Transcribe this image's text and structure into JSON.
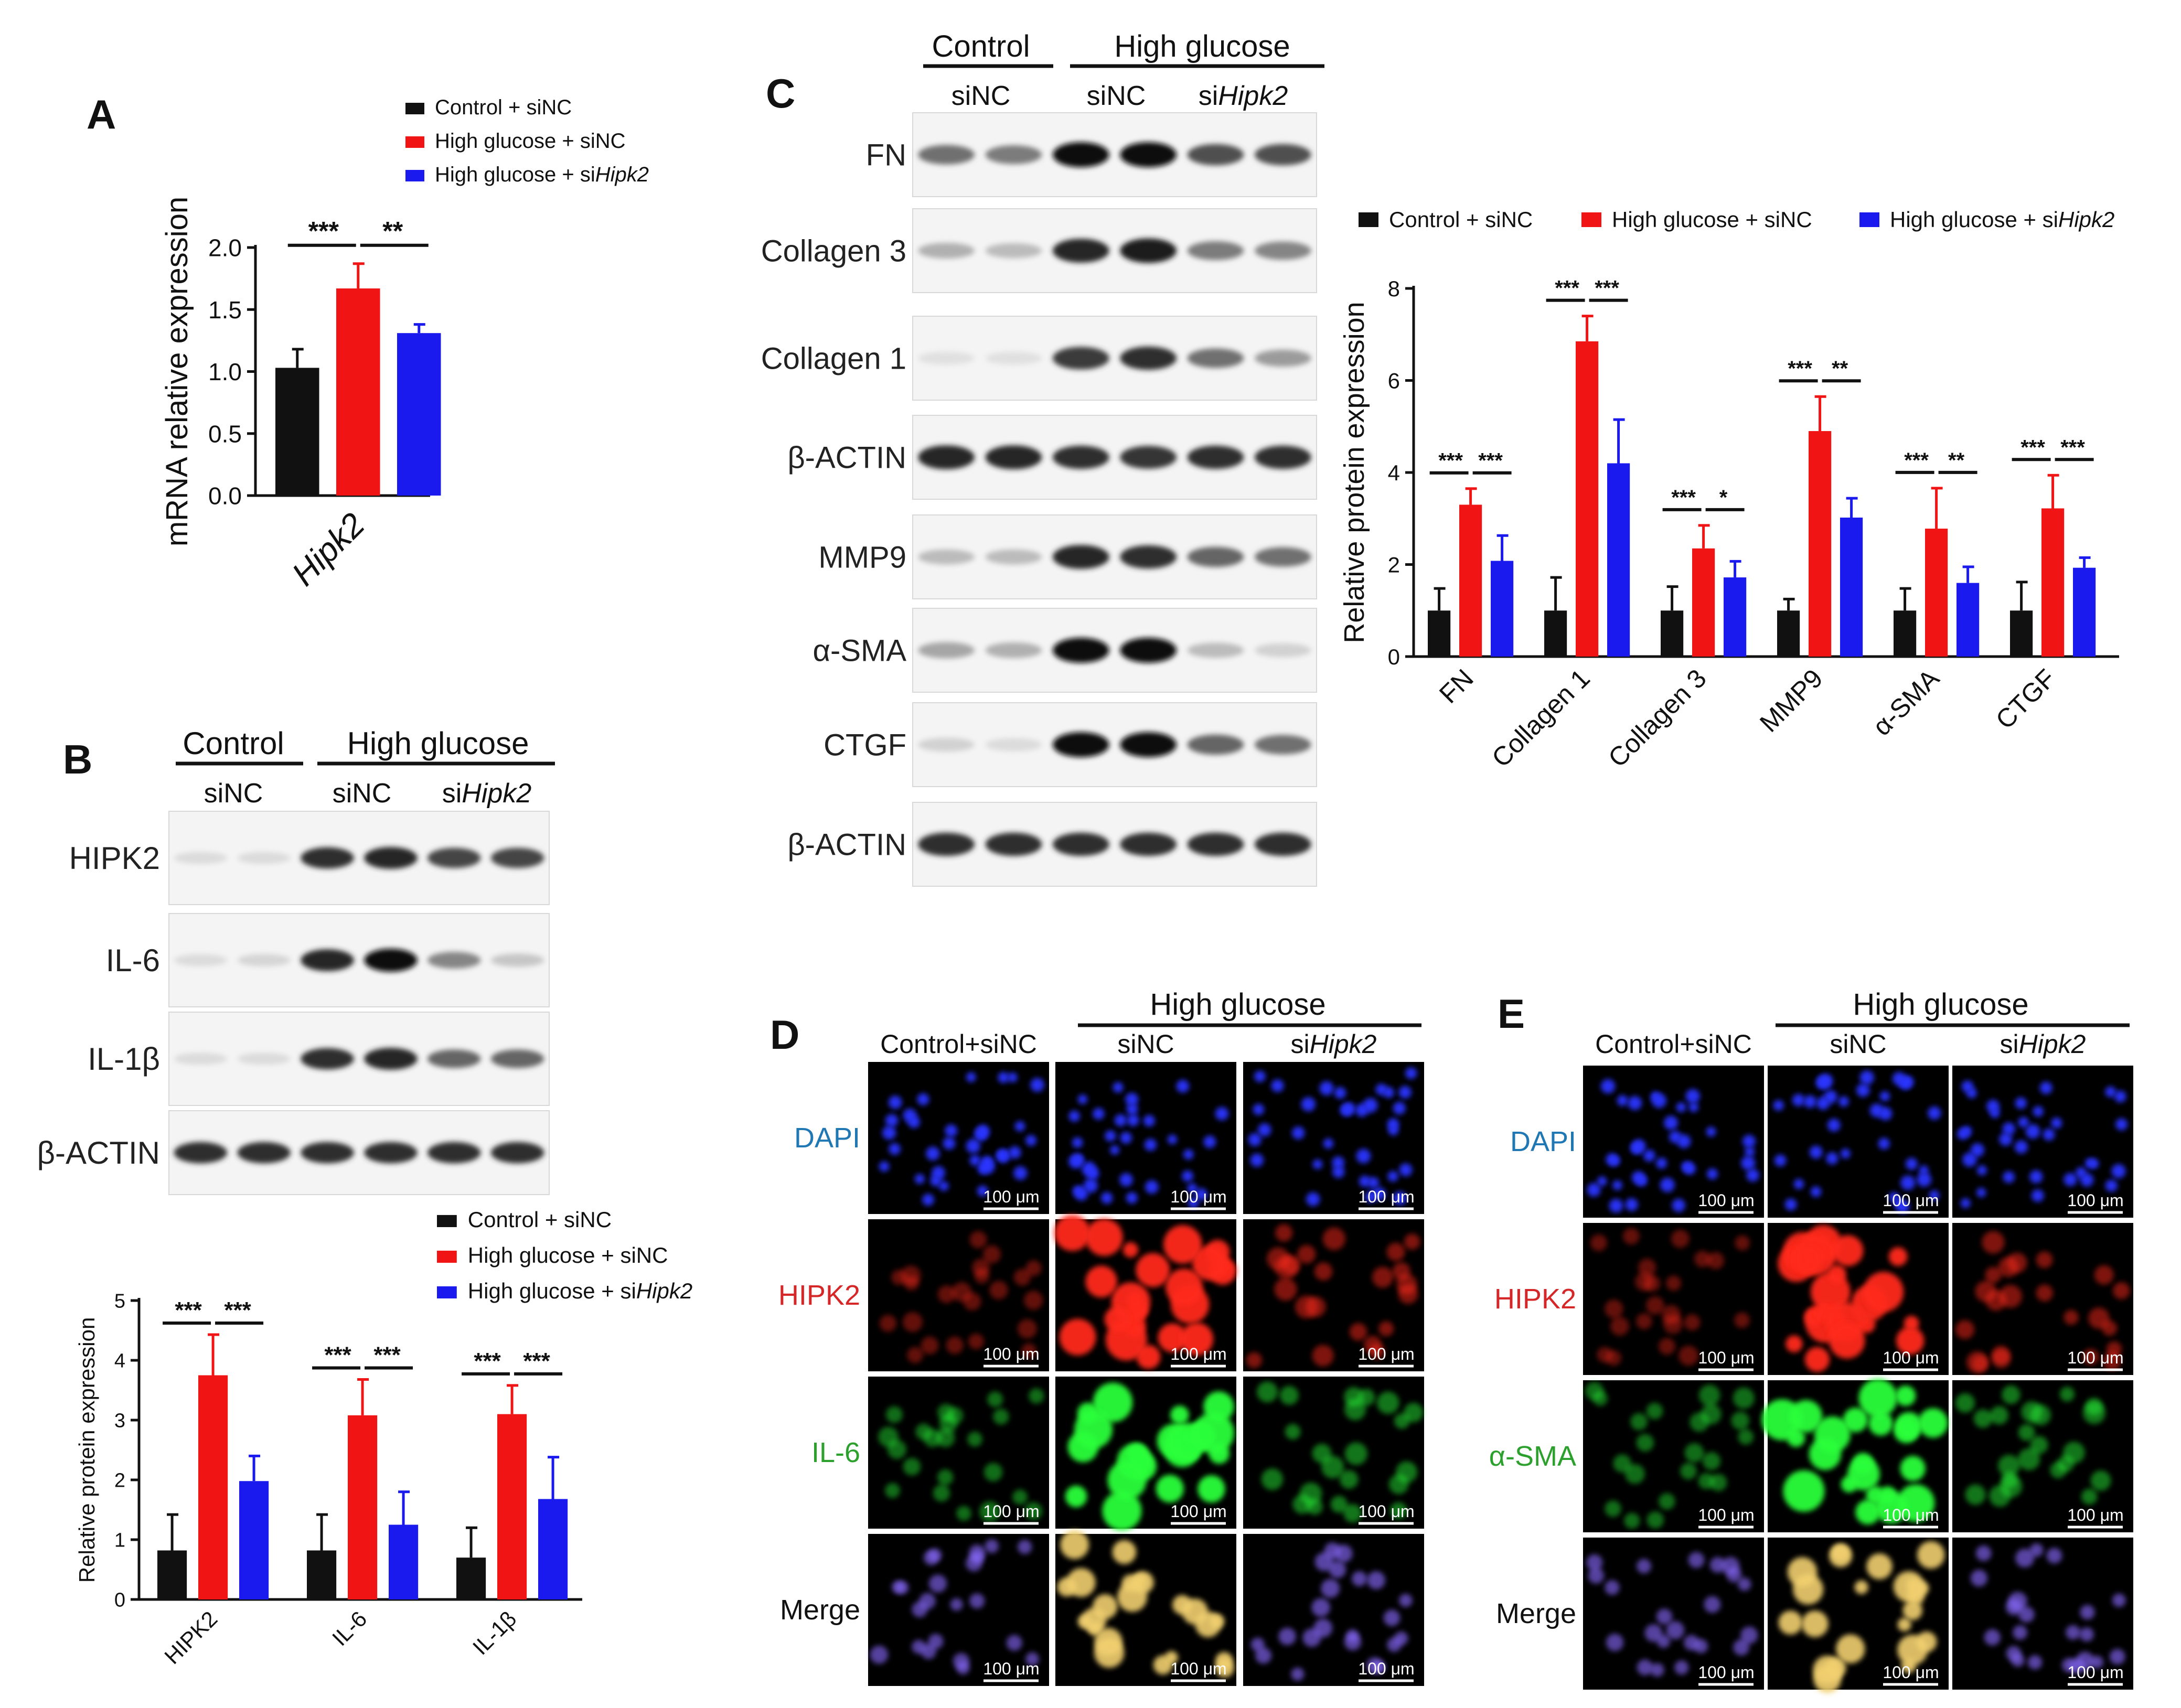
{
  "figure": {
    "panels": {
      "A": "A",
      "B": "B",
      "C": "C",
      "D": "D",
      "E": "E"
    }
  },
  "colors": {
    "control": "#111111",
    "high_glucose_sinc": "#f01414",
    "high_glucose_sihipk2": "#1a1aee"
  },
  "legend": [
    {
      "label": "Control + siNC",
      "color": "#111111"
    },
    {
      "label": "High glucose + siNC",
      "color": "#f01414"
    },
    {
      "label": "High glucose + siHipk2",
      "color": "#1a1aee"
    }
  ],
  "legend_parts": {
    "control": "Control + siNC",
    "hg_sinc": "High glucose + siNC",
    "hg_si_prefix": "High glucose + si",
    "hg_si_gene": "Hipk2"
  },
  "blots": {
    "group_control": "Control",
    "group_high_glucose": "High glucose",
    "sinc": "siNC",
    "si_prefix": "si",
    "si_gene": "Hipk2",
    "panel_b_rows": [
      "HIPK2",
      "IL-6",
      "IL-1β",
      "β-ACTIN"
    ],
    "panel_c_rows": [
      "FN",
      "Collagen 3",
      "Collagen 1",
      "β-ACTIN",
      "MMP9",
      "α-SMA",
      "CTGF",
      "β-ACTIN"
    ]
  },
  "immunofluorescence": {
    "high_glucose": "High glucose",
    "columns": {
      "control": "Control+siNC",
      "sinc": "siNC",
      "si_prefix": "si",
      "si_gene": "Hipk2"
    },
    "scale_bar": "100 μm",
    "panel_d_rows": [
      "DAPI",
      "HIPK2",
      "IL-6",
      "Merge"
    ],
    "panel_e_rows": [
      "DAPI",
      "HIPK2",
      "α-SMA",
      "Merge"
    ]
  },
  "chart_data": [
    {
      "panel": "A",
      "type": "bar",
      "categories": [
        "Hipk2"
      ],
      "series": [
        {
          "name": "Control + siNC",
          "values": [
            1.03
          ],
          "errors": [
            0.15
          ]
        },
        {
          "name": "High glucose + siNC",
          "values": [
            1.67
          ],
          "errors": [
            0.2
          ]
        },
        {
          "name": "High glucose + siHipk2",
          "values": [
            1.31
          ],
          "errors": [
            0.07
          ]
        }
      ],
      "ylabel": "mRNA relative expression",
      "ylim": [
        0,
        2.0
      ],
      "yticks": [
        "0.0",
        "0.5",
        "1.0",
        "1.5",
        "2.0"
      ],
      "significance": [
        "***",
        "**"
      ],
      "legend": "top-right",
      "grid": false
    },
    {
      "panel": "B",
      "type": "bar",
      "categories": [
        "HIPK2",
        "IL-6",
        "IL-1β"
      ],
      "series": [
        {
          "name": "Control + siNC",
          "values": [
            0.82,
            0.82,
            0.7
          ],
          "errors": [
            0.6,
            0.6,
            0.5
          ]
        },
        {
          "name": "High glucose + siNC",
          "values": [
            3.75,
            3.08,
            3.1
          ],
          "errors": [
            0.68,
            0.6,
            0.48
          ]
        },
        {
          "name": "High glucose + siHipk2",
          "values": [
            1.98,
            1.25,
            1.68
          ],
          "errors": [
            0.42,
            0.55,
            0.7
          ]
        }
      ],
      "ylabel": "Relative protein expression",
      "ylim": [
        0,
        5
      ],
      "yticks": [
        "0",
        "1",
        "2",
        "3",
        "4",
        "5"
      ],
      "significance": [
        [
          "***",
          "***"
        ],
        [
          "***",
          "***"
        ],
        [
          "***",
          "***"
        ]
      ],
      "legend": "top-right",
      "grid": false
    },
    {
      "panel": "C",
      "type": "bar",
      "categories": [
        "FN",
        "Collagen 1",
        "Collagen 3",
        "MMP9",
        "α-SMA",
        "CTGF"
      ],
      "series": [
        {
          "name": "Control + siNC",
          "values": [
            1.0,
            1.0,
            1.0,
            1.0,
            1.0,
            1.0
          ],
          "errors": [
            0.48,
            0.72,
            0.52,
            0.25,
            0.48,
            0.62
          ]
        },
        {
          "name": "High glucose + siNC",
          "values": [
            3.3,
            6.85,
            2.35,
            4.9,
            2.78,
            3.22
          ],
          "errors": [
            0.35,
            0.55,
            0.5,
            0.75,
            0.88,
            0.72
          ]
        },
        {
          "name": "High glucose + siHipk2",
          "values": [
            2.08,
            4.2,
            1.72,
            3.02,
            1.6,
            1.93
          ],
          "errors": [
            0.55,
            0.95,
            0.35,
            0.42,
            0.35,
            0.22
          ]
        }
      ],
      "ylabel": "Relative protein expression",
      "ylim": [
        0,
        8
      ],
      "yticks": [
        "0",
        "2",
        "4",
        "6",
        "8"
      ],
      "significance": [
        [
          "***",
          "***"
        ],
        [
          "***",
          "***"
        ],
        [
          "***",
          "*"
        ],
        [
          "***",
          "**"
        ],
        [
          "***",
          "**"
        ],
        [
          "***",
          "***"
        ]
      ],
      "legend": "top",
      "grid": false
    }
  ]
}
